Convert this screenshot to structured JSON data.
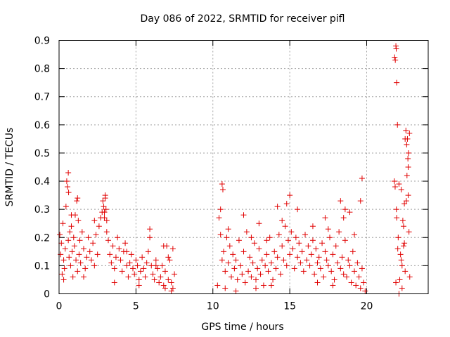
{
  "chart_data": {
    "type": "scatter",
    "title": "Day 086 of 2022, SRMTID for receiver pifl",
    "xlabel": "GPS time / hours",
    "ylabel": "SRMTID / TECUs",
    "xlim": [
      0,
      24
    ],
    "ylim": [
      0,
      0.9
    ],
    "xticks": [
      0,
      5,
      10,
      15,
      20
    ],
    "xtick_labels": [
      "0",
      "5",
      "10",
      "15",
      "20"
    ],
    "yticks": [
      0,
      0.1,
      0.2,
      0.3,
      0.4,
      0.5,
      0.6,
      0.7,
      0.8,
      0.9
    ],
    "ytick_labels": [
      "0",
      "0.1",
      "0.2",
      "0.3",
      "0.4",
      "0.5",
      "0.6",
      "0.7",
      "0.8",
      "0.9"
    ],
    "grid": true,
    "marker": "+",
    "marker_color": "#e00000",
    "series": [
      {
        "name": "pifl",
        "x": [
          0.05,
          0.1,
          0.15,
          0.2,
          0.25,
          0.3,
          0.35,
          0.4,
          0.45,
          0.5,
          0.55,
          0.6,
          0.65,
          0.7,
          0.75,
          0.8,
          0.85,
          0.9,
          0.95,
          1.0,
          1.05,
          1.1,
          1.15,
          1.2,
          1.25,
          1.3,
          1.35,
          1.4,
          1.5,
          1.6,
          1.7,
          1.8,
          1.9,
          2.0,
          2.1,
          2.2,
          2.3,
          2.4,
          2.5,
          2.6,
          2.7,
          2.8,
          2.85,
          2.9,
          2.95,
          3.0,
          3.05,
          3.1,
          3.2,
          3.3,
          3.4,
          3.5,
          3.6,
          3.7,
          3.8,
          3.9,
          4.0,
          4.1,
          4.2,
          4.3,
          4.4,
          4.5,
          4.6,
          4.7,
          4.8,
          4.9,
          5.0,
          5.1,
          5.2,
          5.3,
          5.4,
          5.5,
          5.6,
          5.7,
          5.8,
          5.9,
          6.0,
          6.1,
          6.2,
          6.3,
          6.4,
          6.5,
          6.6,
          6.7,
          6.8,
          6.9,
          7.0,
          7.1,
          7.2,
          7.3,
          7.4,
          7.5,
          0.6,
          0.62,
          1.2,
          2.95,
          3.0,
          3.1,
          5.9,
          6.8,
          7.1,
          7.4,
          0.3,
          0.8,
          1.6,
          2.3,
          3.6,
          4.4,
          5.2,
          6.3,
          6.9,
          7.3,
          10.3,
          10.4,
          10.5,
          10.6,
          10.7,
          10.8,
          10.9,
          11.0,
          11.1,
          11.2,
          11.3,
          11.4,
          11.5,
          11.6,
          11.7,
          11.8,
          11.9,
          12.0,
          12.1,
          12.2,
          12.3,
          12.4,
          12.5,
          12.6,
          12.7,
          12.8,
          12.9,
          13.0,
          13.1,
          13.2,
          13.3,
          13.4,
          13.5,
          13.6,
          13.7,
          13.8,
          13.9,
          14.0,
          14.1,
          14.2,
          14.3,
          14.4,
          14.5,
          14.6,
          14.7,
          14.8,
          14.9,
          15.0,
          15.1,
          15.2,
          15.3,
          15.4,
          15.5,
          15.6,
          15.7,
          15.8,
          15.9,
          16.0,
          16.1,
          16.2,
          16.3,
          16.4,
          16.5,
          16.6,
          16.7,
          16.8,
          16.9,
          17.0,
          17.1,
          17.2,
          17.3,
          17.4,
          17.5,
          17.6,
          17.7,
          17.8,
          17.9,
          18.0,
          18.1,
          18.2,
          18.3,
          18.4,
          18.5,
          18.6,
          18.7,
          18.8,
          18.9,
          19.0,
          19.1,
          19.2,
          19.3,
          19.4,
          19.5,
          19.6,
          19.7,
          19.8,
          10.6,
          10.65,
          15.0,
          14.8,
          18.3,
          18.6,
          19.7,
          19.6,
          17.3,
          12.0,
          13.0,
          11.0,
          10.5,
          12.5,
          13.5,
          14.5,
          16.5,
          17.5,
          18.5,
          19.2,
          10.8,
          11.5,
          13.8,
          16.8,
          19.9,
          15.5,
          18.9,
          14.2,
          12.8,
          17.8,
          21.8,
          21.85,
          21.9,
          21.92,
          21.95,
          22.0,
          22.05,
          22.1,
          22.15,
          22.2,
          22.25,
          22.3,
          22.35,
          22.4,
          22.45,
          22.5,
          22.55,
          22.6,
          22.65,
          22.7,
          22.75,
          22.8,
          21.82,
          21.86,
          21.9,
          21.93,
          22.62,
          22.68,
          22.72,
          22.5,
          22.3,
          22.1,
          21.95,
          22.4,
          22.58,
          22.7,
          22.78,
          22.02,
          22.25,
          22.45
        ],
        "y": [
          0.21,
          0.14,
          0.18,
          0.07,
          0.25,
          0.12,
          0.09,
          0.16,
          0.31,
          0.4,
          0.38,
          0.19,
          0.13,
          0.22,
          0.1,
          0.24,
          0.15,
          0.06,
          0.2,
          0.17,
          0.28,
          0.12,
          0.33,
          0.08,
          0.26,
          0.14,
          0.19,
          0.11,
          0.22,
          0.16,
          0.09,
          0.13,
          0.2,
          0.15,
          0.12,
          0.18,
          0.1,
          0.21,
          0.14,
          0.24,
          0.27,
          0.29,
          0.33,
          0.31,
          0.27,
          0.34,
          0.3,
          0.22,
          0.19,
          0.14,
          0.11,
          0.17,
          0.09,
          0.13,
          0.2,
          0.16,
          0.12,
          0.08,
          0.15,
          0.18,
          0.1,
          0.06,
          0.11,
          0.14,
          0.09,
          0.07,
          0.12,
          0.1,
          0.05,
          0.08,
          0.13,
          0.09,
          0.06,
          0.11,
          0.15,
          0.2,
          0.1,
          0.07,
          0.05,
          0.12,
          0.09,
          0.04,
          0.06,
          0.1,
          0.03,
          0.08,
          0.17,
          0.05,
          0.12,
          0.04,
          0.02,
          0.07,
          0.43,
          0.36,
          0.34,
          0.29,
          0.35,
          0.26,
          0.23,
          0.17,
          0.13,
          0.16,
          0.05,
          0.28,
          0.06,
          0.26,
          0.04,
          0.15,
          0.03,
          0.1,
          0.02,
          0.01,
          0.03,
          0.27,
          0.21,
          0.12,
          0.15,
          0.08,
          0.2,
          0.11,
          0.17,
          0.06,
          0.14,
          0.09,
          0.12,
          0.05,
          0.19,
          0.1,
          0.07,
          0.15,
          0.04,
          0.22,
          0.08,
          0.13,
          0.06,
          0.11,
          0.18,
          0.05,
          0.09,
          0.16,
          0.07,
          0.12,
          0.03,
          0.1,
          0.14,
          0.08,
          0.2,
          0.11,
          0.05,
          0.15,
          0.09,
          0.13,
          0.21,
          0.07,
          0.17,
          0.12,
          0.24,
          0.1,
          0.19,
          0.14,
          0.22,
          0.16,
          0.09,
          0.2,
          0.13,
          0.18,
          0.11,
          0.15,
          0.08,
          0.21,
          0.12,
          0.17,
          0.1,
          0.14,
          0.19,
          0.07,
          0.16,
          0.11,
          0.13,
          0.09,
          0.18,
          0.06,
          0.15,
          0.12,
          0.1,
          0.2,
          0.08,
          0.14,
          0.05,
          0.17,
          0.11,
          0.22,
          0.09,
          0.13,
          0.07,
          0.19,
          0.06,
          0.12,
          0.1,
          0.04,
          0.15,
          0.08,
          0.03,
          0.11,
          0.06,
          0.02,
          0.09,
          0.04,
          0.39,
          0.37,
          0.35,
          0.32,
          0.33,
          0.3,
          0.41,
          0.33,
          0.27,
          0.28,
          0.25,
          0.23,
          0.3,
          0.2,
          0.19,
          0.26,
          0.24,
          0.23,
          0.27,
          0.21,
          0.02,
          0.01,
          0.03,
          0.04,
          0.01,
          0.3,
          0.29,
          0.31,
          0.02,
          0.03,
          0.4,
          0.38,
          0.88,
          0.87,
          0.75,
          0.6,
          0.2,
          0.39,
          0.05,
          0.14,
          0.37,
          0.02,
          0.26,
          0.17,
          0.32,
          0.55,
          0.58,
          0.53,
          0.55,
          0.45,
          0.22,
          0.06,
          0.84,
          0.83,
          0.04,
          0.3,
          0.42,
          0.48,
          0.5,
          0.08,
          0.1,
          0.0,
          0.27,
          0.24,
          0.33,
          0.35,
          0.57,
          0.16,
          0.12,
          0.18
        ]
      }
    ]
  }
}
